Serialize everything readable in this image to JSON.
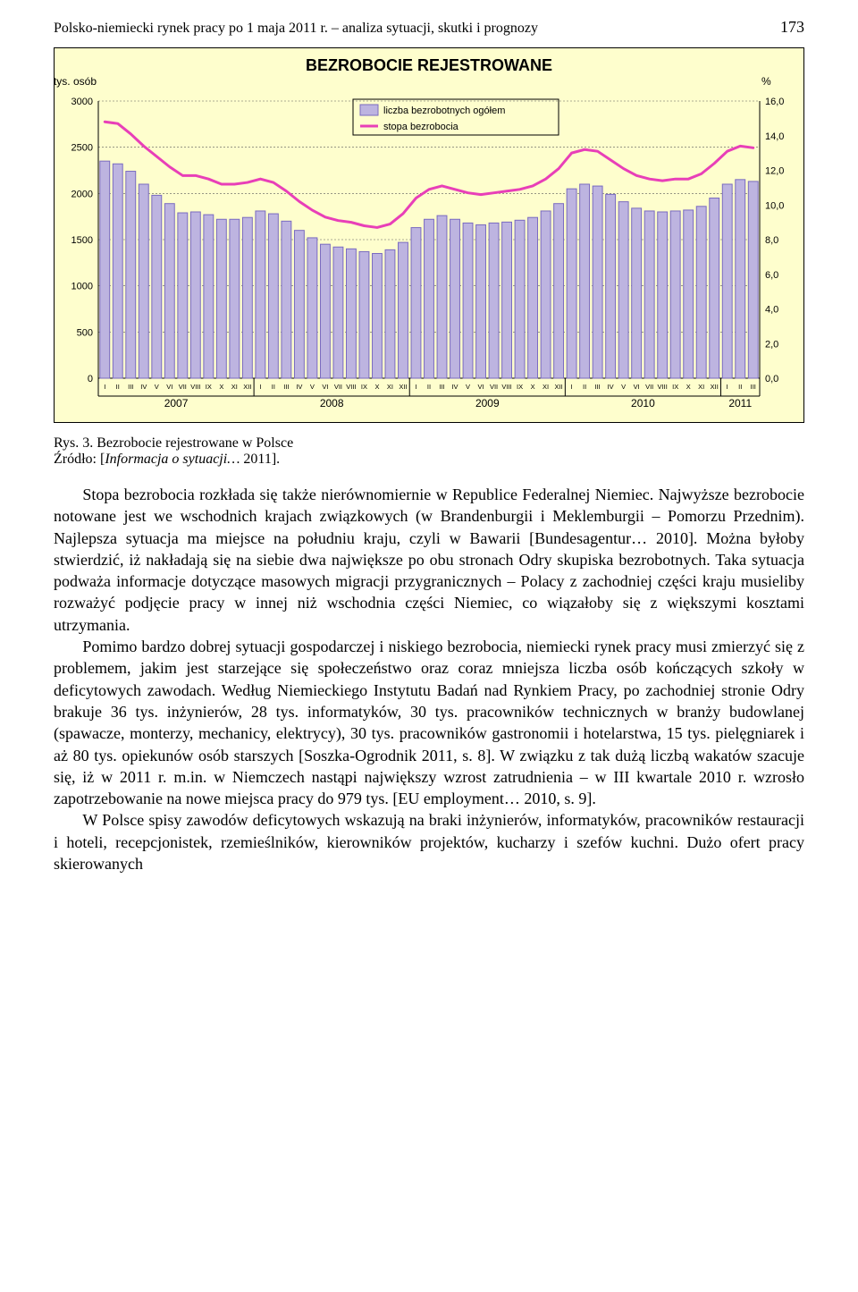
{
  "header": {
    "runningTitle": "Polsko-niemiecki rynek pracy po 1 maja 2011 r. – analiza sytuacji, skutki i prognozy",
    "pageNumber": "173"
  },
  "chart": {
    "type": "bar+line",
    "title": "BEZROBOCIE REJESTROWANE",
    "title_fontsize": 18,
    "title_weight": "bold",
    "background_color": "#fefecd",
    "plot_background_color": "#fefecd",
    "axis_color": "#000000",
    "grid_color": "#5a5a5a",
    "grid_dash": "2,2",
    "ylabel_left": "tys. osób",
    "ylabel_right": "%",
    "label_fontsize": 12,
    "legend": {
      "position": "top-center",
      "border_color": "#000000",
      "items": [
        {
          "swatch": "bar",
          "color_fill": "#bdb4e0",
          "color_stroke": "#7a6bc0",
          "label": "liczba bezrobotnych ogółem"
        },
        {
          "swatch": "line",
          "color_fill": "#e83fb8",
          "color_stroke": "#e83fb8",
          "label": "stopa bezrobocia"
        }
      ]
    },
    "left_axis": {
      "min": 0,
      "max": 3000,
      "step": 500
    },
    "right_axis": {
      "min": 0.0,
      "max": 16.0,
      "step": 2.0
    },
    "bar_color_fill": "#bdb4e0",
    "bar_color_stroke": "#7a6bc0",
    "bar_stroke_width": 1,
    "bar_width": 0.75,
    "line_color": "#e83fb8",
    "line_width": 3,
    "years": [
      "2007",
      "2008",
      "2009",
      "2010",
      "2011"
    ],
    "monthLabels": [
      "I",
      "II",
      "III",
      "IV",
      "V",
      "VI",
      "VII",
      "VIII",
      "IX",
      "X",
      "XI",
      "XII"
    ],
    "bars_thousands": [
      2350,
      2320,
      2240,
      2100,
      1980,
      1890,
      1790,
      1800,
      1770,
      1720,
      1720,
      1740,
      1810,
      1780,
      1700,
      1600,
      1520,
      1450,
      1420,
      1400,
      1370,
      1350,
      1390,
      1470,
      1630,
      1720,
      1760,
      1720,
      1680,
      1660,
      1680,
      1690,
      1710,
      1740,
      1810,
      1890,
      2050,
      2100,
      2080,
      1990,
      1910,
      1840,
      1810,
      1800,
      1810,
      1820,
      1860,
      1950,
      2100,
      2150,
      2130
    ],
    "line_rate_pct": [
      14.8,
      14.7,
      14.1,
      13.4,
      12.8,
      12.2,
      11.7,
      11.7,
      11.5,
      11.2,
      11.2,
      11.3,
      11.5,
      11.3,
      10.8,
      10.2,
      9.7,
      9.3,
      9.1,
      9.0,
      8.8,
      8.7,
      8.9,
      9.5,
      10.4,
      10.9,
      11.1,
      10.9,
      10.7,
      10.6,
      10.7,
      10.8,
      10.9,
      11.1,
      11.5,
      12.1,
      13.0,
      13.2,
      13.1,
      12.6,
      12.1,
      11.7,
      11.5,
      11.4,
      11.5,
      11.5,
      11.8,
      12.4,
      13.1,
      13.4,
      13.3
    ]
  },
  "figure": {
    "caption": "Rys. 3. Bezrobocie rejestrowane w Polsce",
    "source_prefix": "Źródło: [",
    "source_italic": "Informacja o sytuacji…",
    "source_suffix": " 2011]."
  },
  "paragraphs": {
    "p1": "Stopa bezrobocia rozkłada się także nierównomiernie w Republice Federalnej Niemiec. Najwyższe bezrobocie notowane jest we wschodnich krajach związkowych (w Brandenburgii i Meklemburgii – Pomorzu Przednim). Najlepsza sytuacja ma miejsce na południu kraju, czyli w Bawarii [Bundesagentur… 2010]. Można byłoby stwierdzić, iż nakładają się na siebie dwa największe po obu stronach Odry skupiska bezrobotnych. Taka sytuacja podważa informacje dotyczące masowych migracji przygranicznych – Polacy z zachodniej części kraju musieliby rozważyć podjęcie pracy w innej niż wschodnia części Niemiec, co wiązałoby się z większymi kosztami utrzymania.",
    "p2": "Pomimo bardzo dobrej sytuacji gospodarczej i niskiego bezrobocia, niemiecki rynek pracy musi zmierzyć się z problemem, jakim jest starzejące się społeczeństwo oraz coraz mniejsza liczba osób kończących szkoły w deficytowych zawodach. Według Niemieckiego Instytutu Badań nad Rynkiem Pracy, po zachodniej stronie Odry brakuje 36 tys. inżynierów, 28 tys. informatyków, 30 tys. pracowników technicznych w branży budowlanej (spawacze, monterzy, mechanicy, elektrycy), 30 tys. pracowników gastronomii i hotelarstwa, 15 tys. pielęgniarek i aż 80 tys. opiekunów osób starszych [Soszka-Ogrodnik 2011, s. 8]. W związku z tak dużą liczbą wakatów szacuje się, iż w 2011 r. m.in. w Niemczech nastąpi największy wzrost zatrudnienia – w III kwartale 2010 r. wzrosło zapotrzebowanie na nowe miejsca pracy do 979 tys. [EU employment… 2010, s. 9].",
    "p2_italic1": "EU employment…",
    "p3": "W Polsce spisy zawodów deficytowych wskazują na braki inżynierów, informatyków, pracowników restauracji i hoteli, recepcjonistek, rzemieślników, kierowników projektów, kucharzy i szefów kuchni. Dużo ofert pracy skierowanych"
  }
}
